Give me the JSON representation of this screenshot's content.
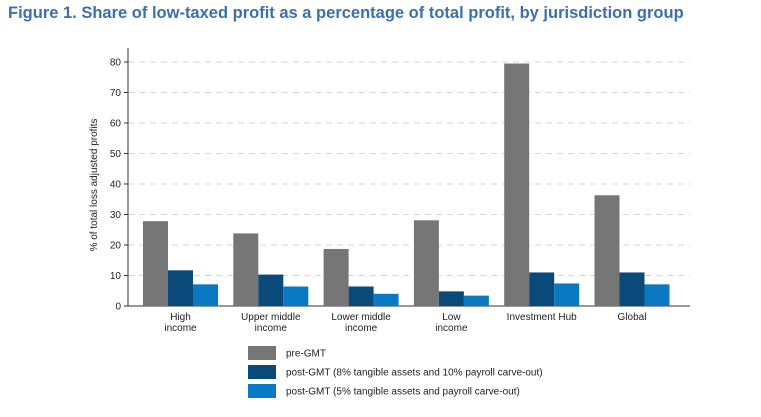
{
  "chart_data": {
    "type": "bar",
    "title": "Figure 1. Share of low-taxed profit as a percentage of total profit, by jurisdiction group",
    "ylabel": "% of total loss adjusted profits",
    "xlabel": "",
    "ylim": [
      0,
      80
    ],
    "yticks": [
      0,
      10,
      20,
      30,
      40,
      50,
      60,
      70,
      80
    ],
    "grid": true,
    "legend_position": "bottom",
    "categories": [
      [
        "High",
        "income"
      ],
      [
        "Upper middle",
        "income"
      ],
      [
        "Lower middle",
        "income"
      ],
      [
        "Low",
        "income"
      ],
      [
        "Investment Hub"
      ],
      [
        "Global"
      ]
    ],
    "series": [
      {
        "name": "pre-GMT",
        "color": "#767676",
        "values": [
          27.8,
          23.8,
          18.7,
          28.1,
          79.5,
          36.3
        ]
      },
      {
        "name": "post-GMT (8% tangible assets and 10% payroll carve-out)",
        "color": "#0a4a7a",
        "values": [
          11.7,
          10.3,
          6.4,
          4.8,
          11.0,
          11.0
        ]
      },
      {
        "name": "post-GMT (5% tangible assets and payroll carve-out)",
        "color": "#0a79c4",
        "values": [
          7.1,
          6.4,
          4.0,
          3.4,
          7.4,
          7.1
        ]
      }
    ]
  }
}
